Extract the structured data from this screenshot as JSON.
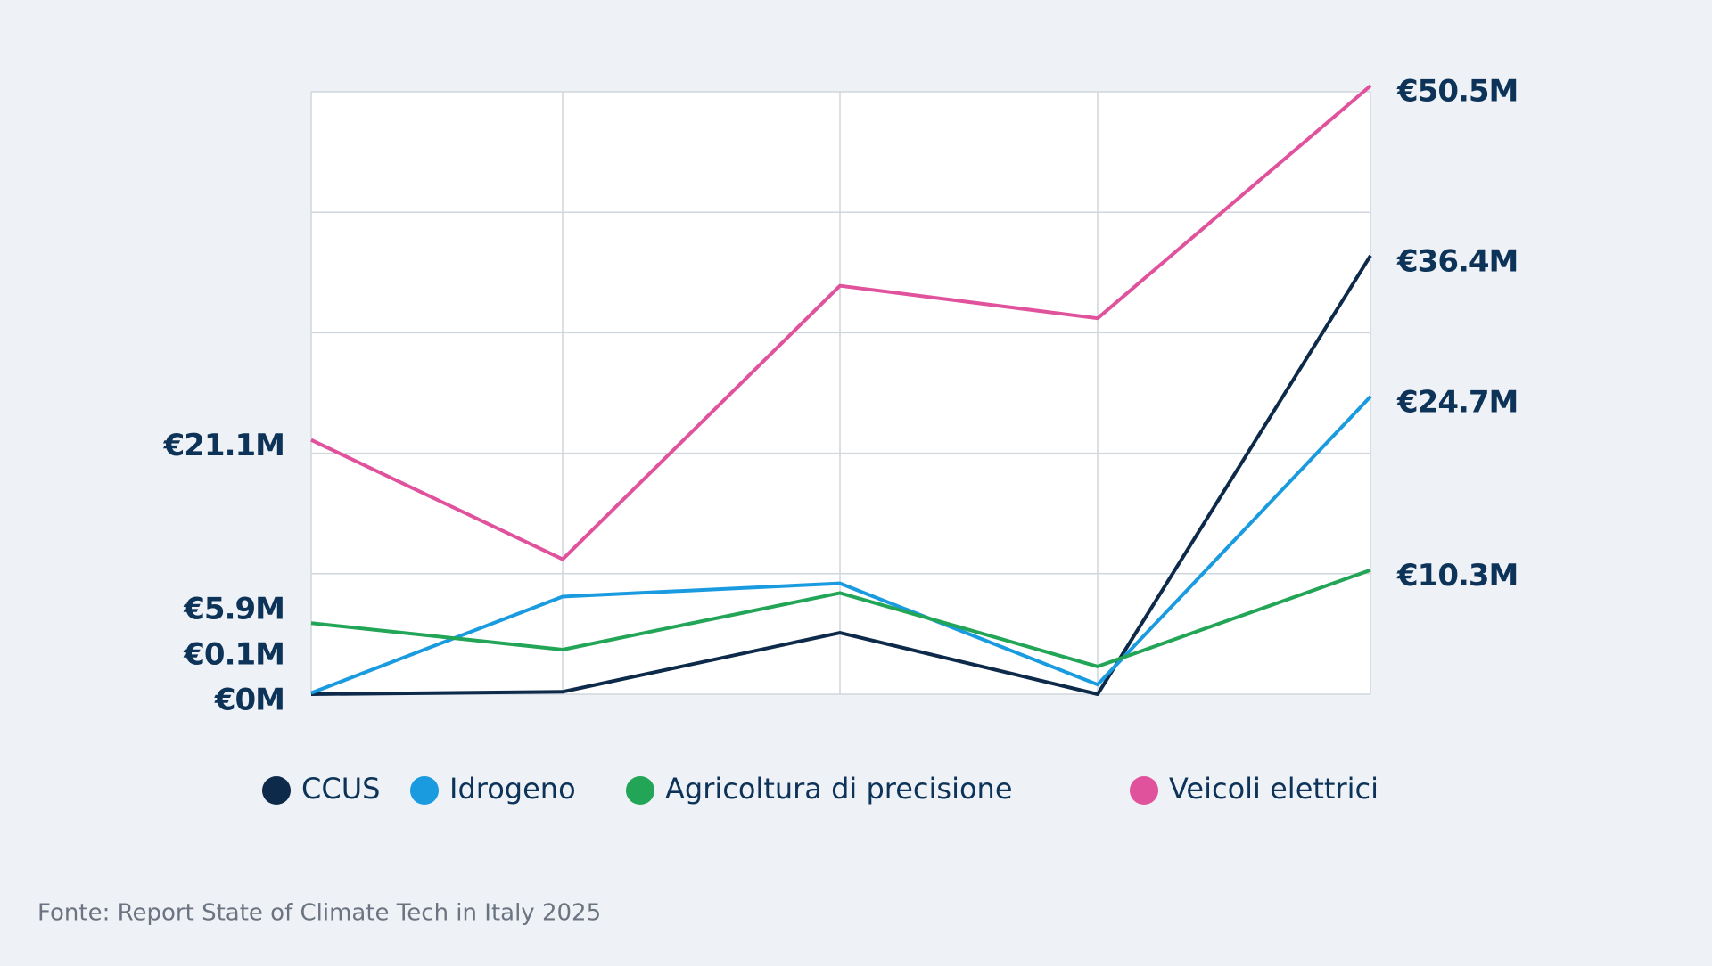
{
  "chart_data": {
    "type": "line",
    "categories": [
      null,
      null,
      null,
      null,
      null
    ],
    "series": [
      {
        "name": "CCUS",
        "color": "#0d2a4a",
        "values": [
          0,
          0.2,
          5.1,
          0,
          36.4
        ],
        "value_labels": [
          "€0M",
          null,
          null,
          null,
          "€36.4M"
        ]
      },
      {
        "name": "Idrogeno",
        "color": "#1a9be0",
        "values": [
          0.1,
          8.1,
          9.2,
          0.8,
          24.7
        ],
        "value_labels": [
          "€0.1M",
          null,
          null,
          null,
          "€24.7M"
        ]
      },
      {
        "name": "Agricoltura di precisione",
        "color": "#22a556",
        "values": [
          5.9,
          3.7,
          8.4,
          2.3,
          10.3
        ],
        "value_labels": [
          "€5.9M",
          null,
          null,
          null,
          "€10.3M"
        ]
      },
      {
        "name": "Veicoli elettrici",
        "color": "#e0529c",
        "values": [
          21.1,
          11.2,
          33.9,
          31.2,
          50.5
        ],
        "value_labels": [
          "€21.1M",
          null,
          null,
          null,
          "€50.5M"
        ]
      }
    ],
    "ylim": [
      0,
      50
    ],
    "yticks": [
      0,
      10,
      20,
      30,
      40,
      50
    ],
    "grid": true,
    "source": "Fonte: Report State of Climate Tech in Italy 2025"
  }
}
